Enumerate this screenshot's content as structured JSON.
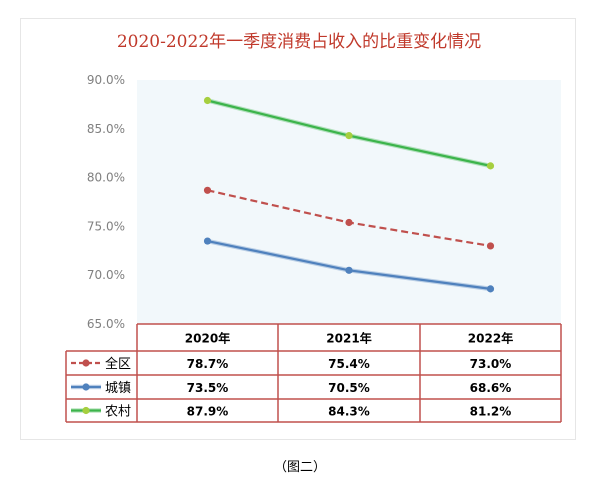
{
  "chart_data": {
    "type": "line",
    "title": "2020-2022年一季度消费占收入的比重变化情况",
    "categories": [
      "2020年",
      "2021年",
      "2022年"
    ],
    "ylim": [
      65,
      90
    ],
    "yticks": [
      "65.0%",
      "70.0%",
      "75.0%",
      "80.0%",
      "85.0%",
      "90.0%"
    ],
    "grid": false,
    "legend": "bottom-table",
    "series": [
      {
        "name": "全区",
        "values": [
          78.7,
          75.4,
          73.0
        ],
        "labels": [
          "78.7%",
          "75.4%",
          "73.0%"
        ],
        "color": "#c0504d",
        "dashed": true
      },
      {
        "name": "城镇",
        "values": [
          73.5,
          70.5,
          68.6
        ],
        "labels": [
          "73.5%",
          "70.5%",
          "68.6%"
        ],
        "color": "#4f81bd",
        "dashed": false
      },
      {
        "name": "农村",
        "values": [
          87.9,
          84.3,
          81.2
        ],
        "labels": [
          "87.9%",
          "84.3%",
          "81.2%"
        ],
        "color": "#3cb44b",
        "dashed": false
      }
    ]
  },
  "caption": "（图二）",
  "colors": {
    "plot_bg": "#f2f8fb",
    "table_border": "#c0504d",
    "title": "#c0392b"
  }
}
